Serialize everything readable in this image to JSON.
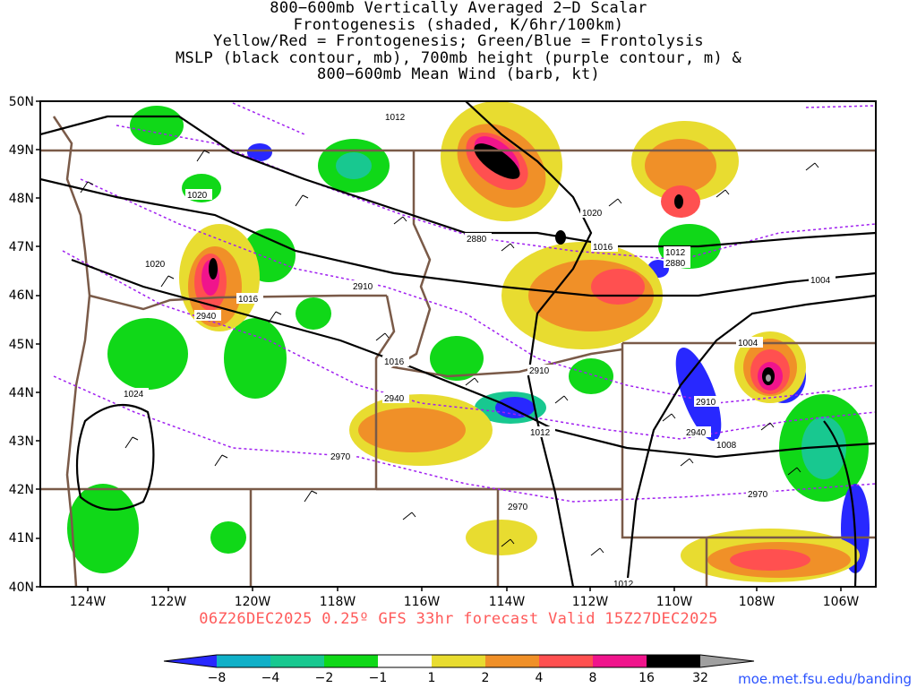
{
  "title_lines": [
    "800−600mb Vertically Averaged 2−D Scalar",
    "Frontogenesis (shaded, K/6hr/100km)",
    "Yellow/Red = Frontogenesis;  Green/Blue = Frontolysis",
    "MSLP (black contour, mb), 700mb height (purple contour, m) &",
    "800−600mb Mean Wind (barb, kt)"
  ],
  "footer": "06Z26DEC2025 0.25º GFS 33hr forecast Valid 15Z27DEC2025",
  "credit": "moe.met.fsu.edu/banding",
  "axes": {
    "lat_labels": [
      "50N",
      "49N",
      "48N",
      "47N",
      "46N",
      "45N",
      "44N",
      "43N",
      "42N",
      "41N",
      "40N"
    ],
    "lon_labels": [
      "124W",
      "122W",
      "120W",
      "118W",
      "116W",
      "114W",
      "112W",
      "110W",
      "108W",
      "106W"
    ]
  },
  "colorbar": {
    "labels": [
      "−8",
      "−4",
      "−2",
      "−1",
      "1",
      "2",
      "4",
      "8",
      "16",
      "32"
    ],
    "colors": [
      "#2828ff",
      "#10b0c8",
      "#18c890",
      "#10d818",
      "#ffffff",
      "#e8dc30",
      "#f09028",
      "#ff5050",
      "#f0148c",
      "#000000",
      "#a0a0a0"
    ]
  },
  "mslp_labels": [
    {
      "text": "1012"
    },
    {
      "text": "1020"
    },
    {
      "text": "1020"
    },
    {
      "text": "1016"
    },
    {
      "text": "1016"
    },
    {
      "text": "1012"
    },
    {
      "text": "1004"
    },
    {
      "text": "1004"
    },
    {
      "text": "1016"
    },
    {
      "text": "1024"
    },
    {
      "text": "1012"
    },
    {
      "text": "1008"
    },
    {
      "text": "1012"
    },
    {
      "text": "1020"
    }
  ],
  "height_labels": [
    {
      "text": "2880"
    },
    {
      "text": "2910"
    },
    {
      "text": "2940"
    },
    {
      "text": "2880"
    },
    {
      "text": "2910"
    },
    {
      "text": "2940"
    },
    {
      "text": "2910"
    },
    {
      "text": "2940"
    },
    {
      "text": "2970"
    },
    {
      "text": "2970"
    },
    {
      "text": "2970"
    }
  ]
}
